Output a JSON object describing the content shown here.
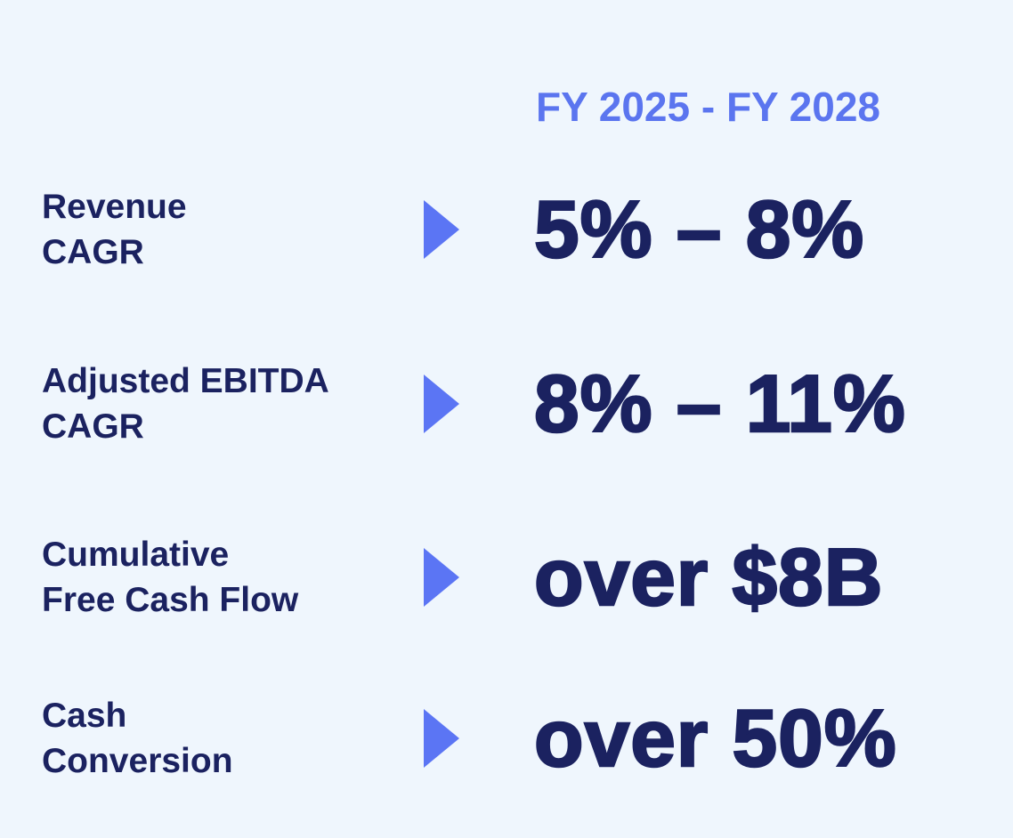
{
  "header": {
    "title": "FY 2025 - FY 2028"
  },
  "rows": [
    {
      "label": [
        "Revenue",
        "CAGR"
      ],
      "value": "5% – 8%"
    },
    {
      "label": [
        "Adjusted EBITDA",
        "CAGR"
      ],
      "value": "8% – 11%"
    },
    {
      "label": [
        "Cumulative",
        "Free Cash Flow"
      ],
      "value": "over $8B"
    },
    {
      "label": [
        "Cash",
        "Conversion"
      ],
      "value": "over 50%"
    }
  ]
}
